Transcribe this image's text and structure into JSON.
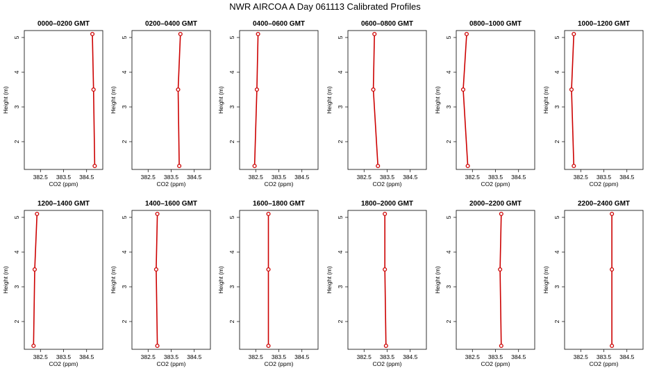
{
  "title": "NWR AIRCOA A  Day 061113  Calibrated Profiles",
  "colors": {
    "line": "#cc0000",
    "axis": "#000000"
  },
  "chart_data": {
    "type": "line",
    "orientation": "vertical-profile",
    "xlabel": "CO2 (ppm)",
    "ylabel": "Height (m)",
    "xlim": [
      381.8,
      385.2
    ],
    "ylim": [
      1.2,
      5.2
    ],
    "x_ticks": [
      382.5,
      383.5,
      384.5
    ],
    "x_tick_labels": [
      "382.5",
      "383.5",
      "384.5"
    ],
    "y_ticks": [
      2,
      3,
      4,
      5
    ],
    "y_tick_labels": [
      "2",
      "3",
      "4",
      "5"
    ],
    "grid": false,
    "legend": "none",
    "panels": [
      {
        "title": "0000–0200 GMT",
        "points": [
          {
            "height": 1.3,
            "co2": 384.85
          },
          {
            "height": 3.5,
            "co2": 384.8
          },
          {
            "height": 5.1,
            "co2": 384.75
          }
        ]
      },
      {
        "title": "0200–0400 GMT",
        "points": [
          {
            "height": 1.3,
            "co2": 383.85
          },
          {
            "height": 3.5,
            "co2": 383.8
          },
          {
            "height": 5.1,
            "co2": 383.9
          }
        ]
      },
      {
        "title": "0400–0600 GMT",
        "points": [
          {
            "height": 1.3,
            "co2": 382.45
          },
          {
            "height": 3.5,
            "co2": 382.55
          },
          {
            "height": 5.1,
            "co2": 382.6
          }
        ]
      },
      {
        "title": "0600–0800 GMT",
        "points": [
          {
            "height": 1.3,
            "co2": 383.1
          },
          {
            "height": 3.5,
            "co2": 382.9
          },
          {
            "height": 5.1,
            "co2": 382.95
          }
        ]
      },
      {
        "title": "0800–1000 GMT",
        "points": [
          {
            "height": 1.3,
            "co2": 382.3
          },
          {
            "height": 3.5,
            "co2": 382.1
          },
          {
            "height": 5.1,
            "co2": 382.25
          }
        ]
      },
      {
        "title": "1000–1200 GMT",
        "points": [
          {
            "height": 1.3,
            "co2": 382.2
          },
          {
            "height": 3.5,
            "co2": 382.1
          },
          {
            "height": 5.1,
            "co2": 382.2
          }
        ]
      },
      {
        "title": "1200–1400 GMT",
        "points": [
          {
            "height": 1.3,
            "co2": 382.2
          },
          {
            "height": 3.5,
            "co2": 382.25
          },
          {
            "height": 5.1,
            "co2": 382.35
          }
        ]
      },
      {
        "title": "1400–1600 GMT",
        "points": [
          {
            "height": 1.3,
            "co2": 382.9
          },
          {
            "height": 3.5,
            "co2": 382.85
          },
          {
            "height": 5.1,
            "co2": 382.9
          }
        ]
      },
      {
        "title": "1600–1800 GMT",
        "points": [
          {
            "height": 1.3,
            "co2": 383.05
          },
          {
            "height": 3.5,
            "co2": 383.05
          },
          {
            "height": 5.1,
            "co2": 383.05
          }
        ]
      },
      {
        "title": "1800–2000 GMT",
        "points": [
          {
            "height": 1.3,
            "co2": 383.45
          },
          {
            "height": 3.5,
            "co2": 383.4
          },
          {
            "height": 5.1,
            "co2": 383.4
          }
        ]
      },
      {
        "title": "2000–2200 GMT",
        "points": [
          {
            "height": 1.3,
            "co2": 383.75
          },
          {
            "height": 3.5,
            "co2": 383.7
          },
          {
            "height": 5.1,
            "co2": 383.75
          }
        ]
      },
      {
        "title": "2200–2400 GMT",
        "points": [
          {
            "height": 1.3,
            "co2": 383.85
          },
          {
            "height": 3.5,
            "co2": 383.85
          },
          {
            "height": 5.1,
            "co2": 383.85
          }
        ]
      }
    ]
  }
}
